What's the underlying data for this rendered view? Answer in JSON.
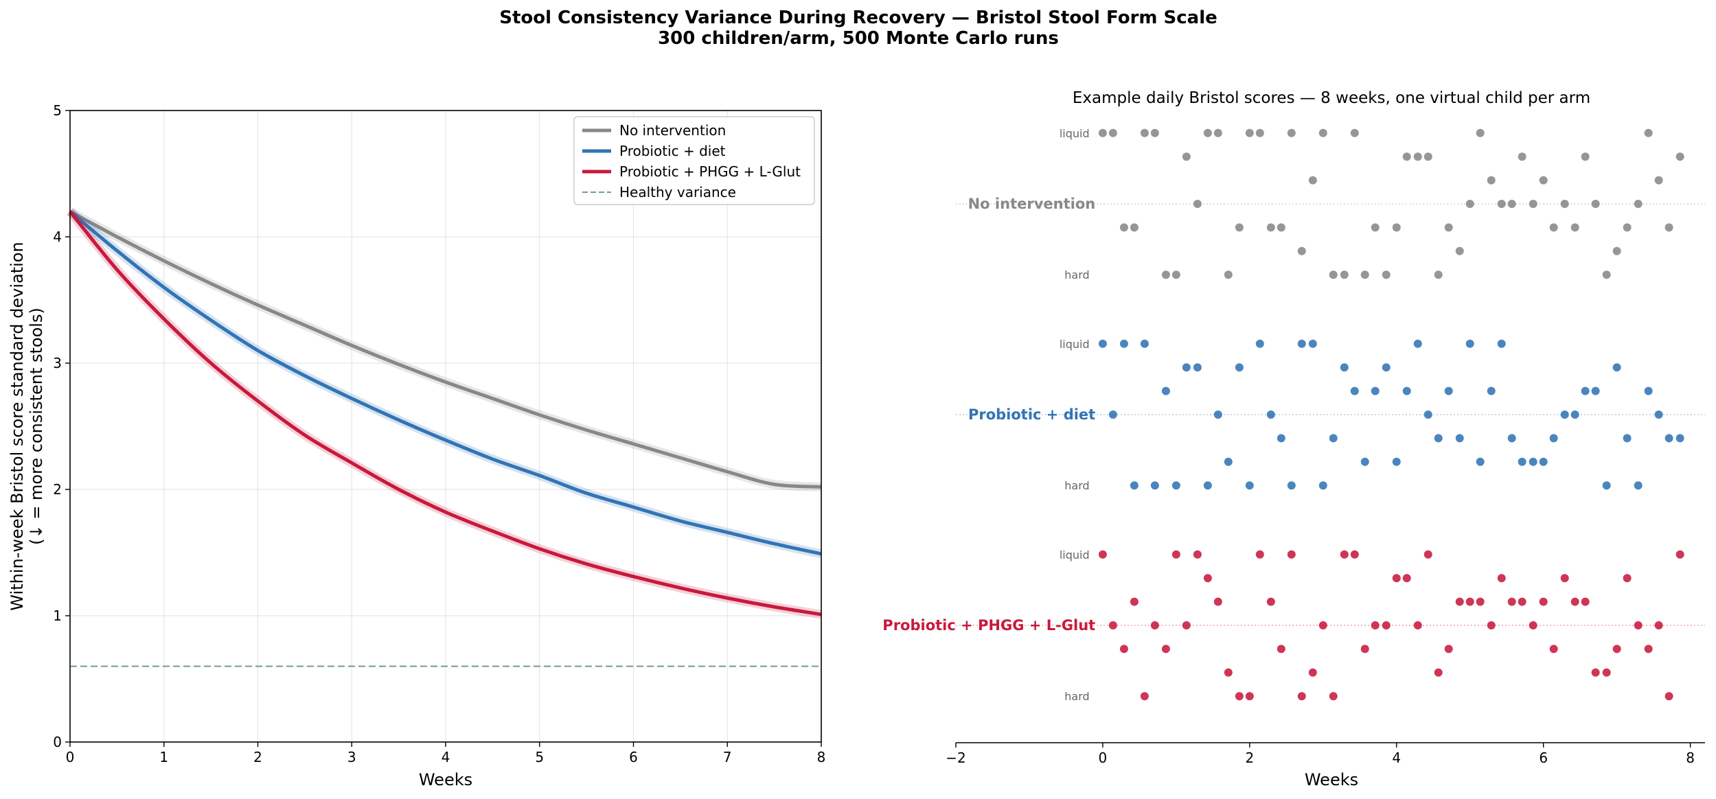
{
  "figure": {
    "title_line1": "Stool Consistency Variance During Recovery — Bristol Stool Form Scale",
    "title_line2": "300 children/arm, 500 Monte Carlo runs"
  },
  "colors": {
    "no_intervention": "#888888",
    "probiotic_diet": "#3274b5",
    "probiotic_phgg": "#c8193c",
    "healthy": "#6f9c94",
    "grid": "#e6e6e6"
  },
  "chart_data": [
    {
      "type": "line",
      "title": "",
      "xlabel": "Weeks",
      "ylabel_line1": "Within-week Bristol score standard deviation",
      "ylabel_line2": "(↓ = more consistent stools)",
      "xlim": [
        0,
        8
      ],
      "ylim": [
        0,
        5
      ],
      "xticks": [
        0,
        1,
        2,
        3,
        4,
        5,
        6,
        7,
        8
      ],
      "yticks": [
        0,
        1,
        2,
        3,
        4,
        5
      ],
      "grid": true,
      "legend_position": "top-right",
      "series": [
        {
          "name": "No intervention",
          "color_key": "no_intervention",
          "x": [
            0,
            0.5,
            1,
            1.5,
            2,
            2.5,
            3,
            3.5,
            4,
            4.5,
            5,
            5.5,
            6,
            6.5,
            7,
            7.5,
            8
          ],
          "y": [
            4.2,
            4.0,
            3.81,
            3.63,
            3.46,
            3.3,
            3.14,
            2.99,
            2.85,
            2.72,
            2.59,
            2.47,
            2.36,
            2.25,
            2.14,
            2.04,
            2.02
          ]
        },
        {
          "name": "Probiotic + diet",
          "color_key": "probiotic_diet",
          "x": [
            0,
            0.5,
            1,
            1.5,
            2,
            2.5,
            3,
            3.5,
            4,
            4.5,
            5,
            5.5,
            6,
            6.5,
            7,
            7.5,
            8
          ],
          "y": [
            4.2,
            3.89,
            3.6,
            3.34,
            3.1,
            2.9,
            2.72,
            2.55,
            2.39,
            2.24,
            2.11,
            1.97,
            1.86,
            1.75,
            1.66,
            1.57,
            1.49
          ]
        },
        {
          "name": "Probiotic + PHGG + L-Glut",
          "color_key": "probiotic_phgg",
          "x": [
            0,
            0.5,
            1,
            1.5,
            2,
            2.5,
            3,
            3.5,
            4,
            4.5,
            5,
            5.5,
            6,
            6.5,
            7,
            7.5,
            8
          ],
          "y": [
            4.2,
            3.74,
            3.35,
            3.0,
            2.7,
            2.43,
            2.21,
            2.0,
            1.82,
            1.67,
            1.53,
            1.41,
            1.31,
            1.22,
            1.14,
            1.07,
            1.01
          ]
        },
        {
          "name": "Healthy variance",
          "color_key": "healthy",
          "style": "dashed",
          "x": [
            0,
            8
          ],
          "y": [
            0.6,
            0.6
          ]
        }
      ]
    },
    {
      "type": "scatter",
      "title": "Example daily Bristol scores — 8 weeks, one virtual child per arm",
      "xlabel": "Weeks",
      "xlim": [
        -2,
        8.2
      ],
      "xticks": [
        -2,
        0,
        2,
        4,
        6,
        8
      ],
      "level_labels": {
        "top": "liquid",
        "bottom": "hard"
      },
      "arms": [
        {
          "name": "No intervention",
          "color_key": "no_intervention",
          "points": [
            [
              0,
              7
            ],
            [
              0.14,
              7
            ],
            [
              0.57,
              7
            ],
            [
              0.71,
              7
            ],
            [
              1.43,
              7
            ],
            [
              1.57,
              7
            ],
            [
              2,
              7
            ],
            [
              2.14,
              7
            ],
            [
              2.57,
              7
            ],
            [
              3,
              7
            ],
            [
              3.43,
              7
            ],
            [
              5.14,
              7
            ],
            [
              7.43,
              7
            ],
            [
              1.14,
              6
            ],
            [
              4.14,
              6
            ],
            [
              4.29,
              6
            ],
            [
              4.43,
              6
            ],
            [
              5.71,
              6
            ],
            [
              6.57,
              6
            ],
            [
              7.86,
              6
            ],
            [
              2.86,
              5
            ],
            [
              5.29,
              5
            ],
            [
              6,
              5
            ],
            [
              7.57,
              5
            ],
            [
              1.29,
              4
            ],
            [
              5,
              4
            ],
            [
              5.43,
              4
            ],
            [
              5.57,
              4
            ],
            [
              5.86,
              4
            ],
            [
              6.29,
              4
            ],
            [
              6.71,
              4
            ],
            [
              7.29,
              4
            ],
            [
              0.29,
              3
            ],
            [
              0.43,
              3
            ],
            [
              1.86,
              3
            ],
            [
              2.29,
              3
            ],
            [
              2.43,
              3
            ],
            [
              3.71,
              3
            ],
            [
              4,
              3
            ],
            [
              4.71,
              3
            ],
            [
              6.14,
              3
            ],
            [
              6.43,
              3
            ],
            [
              7.14,
              3
            ],
            [
              7.71,
              3
            ],
            [
              2.71,
              2
            ],
            [
              4.86,
              2
            ],
            [
              7,
              2
            ],
            [
              0.86,
              1
            ],
            [
              1,
              1
            ],
            [
              1.71,
              1
            ],
            [
              3.14,
              1
            ],
            [
              3.29,
              1
            ],
            [
              3.57,
              1
            ],
            [
              3.86,
              1
            ],
            [
              4.57,
              1
            ],
            [
              6.86,
              1
            ]
          ]
        },
        {
          "name": "Probiotic + diet",
          "color_key": "probiotic_diet",
          "points": [
            [
              0,
              7
            ],
            [
              0.29,
              7
            ],
            [
              0.57,
              7
            ],
            [
              2.14,
              7
            ],
            [
              2.71,
              7
            ],
            [
              2.86,
              7
            ],
            [
              4.29,
              7
            ],
            [
              5,
              7
            ],
            [
              5.43,
              7
            ],
            [
              1.14,
              6
            ],
            [
              1.29,
              6
            ],
            [
              1.86,
              6
            ],
            [
              3.29,
              6
            ],
            [
              3.86,
              6
            ],
            [
              7,
              6
            ],
            [
              0.86,
              5
            ],
            [
              3.43,
              5
            ],
            [
              3.71,
              5
            ],
            [
              4.14,
              5
            ],
            [
              4.71,
              5
            ],
            [
              5.29,
              5
            ],
            [
              6.57,
              5
            ],
            [
              6.71,
              5
            ],
            [
              7.43,
              5
            ],
            [
              0.14,
              4
            ],
            [
              1.57,
              4
            ],
            [
              2.29,
              4
            ],
            [
              4.43,
              4
            ],
            [
              6.29,
              4
            ],
            [
              6.43,
              4
            ],
            [
              7.57,
              4
            ],
            [
              2.43,
              3
            ],
            [
              3.14,
              3
            ],
            [
              4.57,
              3
            ],
            [
              4.86,
              3
            ],
            [
              5.57,
              3
            ],
            [
              6.14,
              3
            ],
            [
              7.14,
              3
            ],
            [
              7.71,
              3
            ],
            [
              7.86,
              3
            ],
            [
              1.71,
              2
            ],
            [
              3.57,
              2
            ],
            [
              4,
              2
            ],
            [
              5.14,
              2
            ],
            [
              5.71,
              2
            ],
            [
              5.86,
              2
            ],
            [
              6,
              2
            ],
            [
              0.43,
              1
            ],
            [
              0.71,
              1
            ],
            [
              1,
              1
            ],
            [
              1.43,
              1
            ],
            [
              2,
              1
            ],
            [
              2.57,
              1
            ],
            [
              3,
              1
            ],
            [
              6.86,
              1
            ],
            [
              7.29,
              1
            ]
          ]
        },
        {
          "name": "Probiotic + PHGG + L-Glut",
          "color_key": "probiotic_phgg",
          "points": [
            [
              0,
              7
            ],
            [
              1,
              7
            ],
            [
              1.29,
              7
            ],
            [
              2.14,
              7
            ],
            [
              2.57,
              7
            ],
            [
              3.29,
              7
            ],
            [
              3.43,
              7
            ],
            [
              4.43,
              7
            ],
            [
              7.86,
              7
            ],
            [
              1.43,
              6
            ],
            [
              4,
              6
            ],
            [
              4.14,
              6
            ],
            [
              5.43,
              6
            ],
            [
              6.29,
              6
            ],
            [
              7.14,
              6
            ],
            [
              0.43,
              5
            ],
            [
              1.57,
              5
            ],
            [
              2.29,
              5
            ],
            [
              4.86,
              5
            ],
            [
              5,
              5
            ],
            [
              5.14,
              5
            ],
            [
              5.57,
              5
            ],
            [
              5.71,
              5
            ],
            [
              6,
              5
            ],
            [
              6.43,
              5
            ],
            [
              6.57,
              5
            ],
            [
              0.14,
              4
            ],
            [
              0.71,
              4
            ],
            [
              1.14,
              4
            ],
            [
              3,
              4
            ],
            [
              3.71,
              4
            ],
            [
              3.86,
              4
            ],
            [
              4.29,
              4
            ],
            [
              5.29,
              4
            ],
            [
              5.86,
              4
            ],
            [
              7.29,
              4
            ],
            [
              7.57,
              4
            ],
            [
              0.29,
              3
            ],
            [
              0.86,
              3
            ],
            [
              2.43,
              3
            ],
            [
              3.57,
              3
            ],
            [
              4.71,
              3
            ],
            [
              6.14,
              3
            ],
            [
              7,
              3
            ],
            [
              7.43,
              3
            ],
            [
              1.71,
              2
            ],
            [
              2.86,
              2
            ],
            [
              4.57,
              2
            ],
            [
              6.71,
              2
            ],
            [
              6.86,
              2
            ],
            [
              0.57,
              1
            ],
            [
              1.86,
              1
            ],
            [
              2,
              1
            ],
            [
              2.71,
              1
            ],
            [
              3.14,
              1
            ],
            [
              7.71,
              1
            ]
          ]
        }
      ]
    }
  ]
}
